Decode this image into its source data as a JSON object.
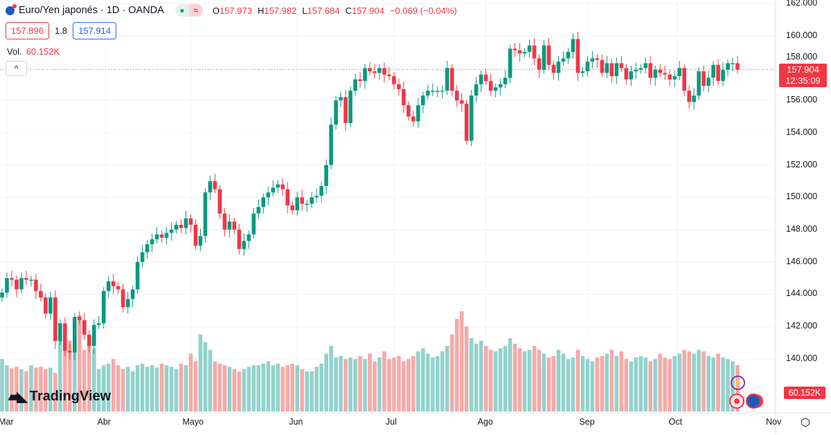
{
  "header": {
    "title": "Euro/Yen japonés · 1D · OANDA",
    "status_dot": "●",
    "status_wave": "≈",
    "o_label": "O",
    "o": "157.973",
    "h_label": "H",
    "h": "157.982",
    "l_label": "L",
    "l": "157.684",
    "c_label": "C",
    "c": "157.904",
    "change": "−0.069 (−0.04%)",
    "bid": "157.896",
    "spread": "1.8",
    "ask": "157.914",
    "vol_label": "Vol.",
    "vol_value": "60.152K",
    "collapse_icon": "^"
  },
  "price_tag": {
    "price": "157.904",
    "countdown": "12:35:09"
  },
  "volume_tag": "60.152K",
  "logo_text": "TradingView",
  "colors": {
    "up": "#089981",
    "down": "#f23645",
    "vol_up": "#92d2cc",
    "vol_down": "#f7a9a7"
  },
  "chart_data": {
    "type": "candlestick",
    "symbol": "EUR/JPY",
    "interval": "1D",
    "ylim": [
      140,
      162
    ],
    "y_ticks": [
      "162.000",
      "160.000",
      "158.000",
      "156.000",
      "154.000",
      "152.000",
      "150.000",
      "148.000",
      "146.000",
      "144.000",
      "142.000",
      "140.000"
    ],
    "x_ticks": [
      "Mar",
      "Abr",
      "Mayo",
      "Jun",
      "Jul",
      "Ago",
      "Sep",
      "Oct",
      "Nov"
    ],
    "grid": true,
    "close": [
      144.1,
      145.0,
      144.9,
      144.3,
      145.0,
      144.9,
      144.9,
      144.2,
      143.8,
      142.8,
      143.8,
      141.1,
      142.2,
      140.5,
      140.4,
      142.6,
      142.4,
      141.5,
      140.8,
      142.1,
      142.2,
      144.2,
      144.8,
      144.5,
      144.3,
      143.2,
      143.7,
      144.3,
      146.0,
      146.6,
      147.1,
      147.4,
      147.7,
      147.5,
      147.8,
      148.0,
      148.3,
      148.1,
      148.7,
      148.3,
      147.0,
      147.6,
      150.3,
      151.0,
      150.5,
      149.0,
      148.0,
      148.5,
      148.0,
      146.8,
      147.3,
      147.7,
      149.0,
      149.4,
      150.0,
      150.3,
      150.6,
      150.8,
      150.5,
      149.5,
      149.2,
      150.0,
      149.6,
      149.6,
      150.0,
      150.1,
      150.7,
      152.0,
      154.5,
      156.0,
      156.2,
      154.6,
      156.6,
      157.3,
      157.2,
      158.0,
      157.8,
      157.7,
      158.0,
      157.6,
      157.5,
      157.0,
      156.7,
      155.7,
      155.0,
      154.7,
      155.7,
      156.3,
      156.6,
      156.6,
      156.6,
      156.6,
      158.0,
      156.6,
      156.0,
      155.8,
      153.5,
      156.3,
      157.0,
      157.6,
      157.2,
      156.6,
      156.8,
      157.0,
      157.4,
      159.2,
      159.1,
      158.9,
      159.0,
      159.4,
      158.6,
      157.9,
      159.4,
      158.2,
      157.7,
      158.4,
      158.6,
      159.0,
      159.8,
      157.7,
      157.8,
      158.4,
      158.6,
      158.5,
      157.7,
      158.3,
      157.5,
      158.3,
      158.0,
      157.3,
      157.8,
      157.9,
      158.0,
      158.3,
      157.4,
      157.9,
      157.7,
      157.6,
      157.3,
      157.5,
      158.0,
      156.6,
      155.9,
      156.3,
      157.8,
      156.9,
      157.4,
      158.2,
      157.2,
      157.9,
      158.3,
      158.3,
      157.904
    ],
    "volume_k": [
      68,
      60,
      56,
      58,
      55,
      52,
      60,
      57,
      58,
      55,
      57,
      50,
      96,
      110,
      92,
      100,
      125,
      80,
      85,
      82,
      55,
      60,
      62,
      68,
      60,
      55,
      58,
      52,
      60,
      62,
      58,
      60,
      57,
      62,
      60,
      58,
      55,
      62,
      60,
      75,
      65,
      100,
      90,
      80,
      65,
      62,
      60,
      58,
      55,
      52,
      55,
      58,
      60,
      60,
      62,
      65,
      60,
      62,
      58,
      60,
      62,
      60,
      55,
      52,
      52,
      58,
      62,
      75,
      85,
      70,
      72,
      68,
      70,
      68,
      72,
      68,
      75,
      65,
      70,
      78,
      68,
      70,
      72,
      65,
      68,
      72,
      78,
      82,
      75,
      70,
      72,
      78,
      85,
      100,
      120,
      130,
      110,
      95,
      88,
      92,
      85,
      80,
      78,
      82,
      85,
      95,
      88,
      82,
      78,
      80,
      85,
      80,
      75,
      70,
      72,
      80,
      75,
      68,
      70,
      80,
      72,
      68,
      65,
      70,
      72,
      75,
      80,
      72,
      78,
      68,
      65,
      70,
      72,
      70,
      65,
      68,
      75,
      70,
      68,
      72,
      75,
      80,
      78,
      75,
      80,
      78,
      72,
      70,
      75,
      70,
      68,
      65,
      60.152
    ]
  }
}
